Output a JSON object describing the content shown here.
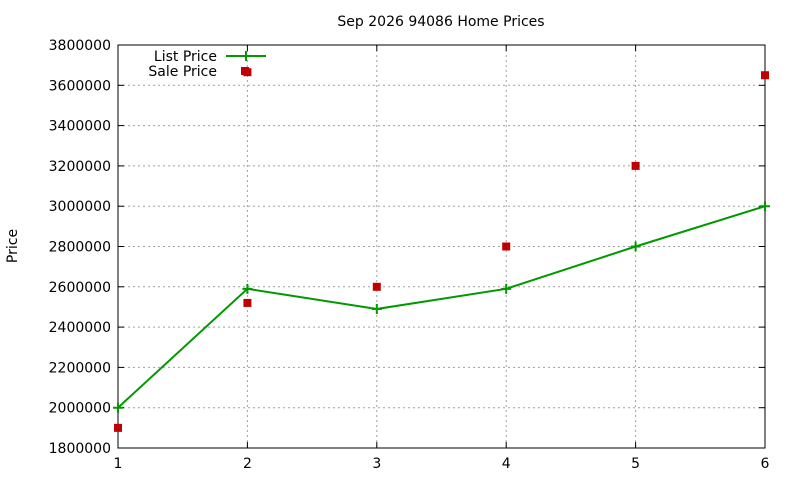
{
  "chart_data": {
    "type": "line",
    "title": "Sep 2026 94086 Home Prices",
    "xlabel": "",
    "ylabel": "Price",
    "x": [
      1,
      2,
      3,
      4,
      5,
      6
    ],
    "xlim": [
      1,
      6
    ],
    "ylim": [
      1800000,
      3800000
    ],
    "xticks": [
      "1",
      "2",
      "3",
      "4",
      "5",
      "6"
    ],
    "yticks": [
      "1800000",
      "2000000",
      "2200000",
      "2400000",
      "2600000",
      "2800000",
      "3000000",
      "3200000",
      "3400000",
      "3600000",
      "3800000"
    ],
    "grid": true,
    "legend_position": "top-left",
    "series": [
      {
        "name": "List Price",
        "style": "linespoints",
        "marker": "plus",
        "color": "#009900",
        "values": [
          2000000,
          2590000,
          2490000,
          2590000,
          2800000,
          3000000
        ]
      },
      {
        "name": "Sale Price",
        "style": "points",
        "marker": "square",
        "color": "#c00000",
        "values": [
          1900000,
          2520000,
          2600000,
          2800000,
          3200000,
          3650000
        ]
      }
    ],
    "extra_points": [
      {
        "series": "Sale Price",
        "x": 2,
        "y": 3665000
      }
    ]
  }
}
